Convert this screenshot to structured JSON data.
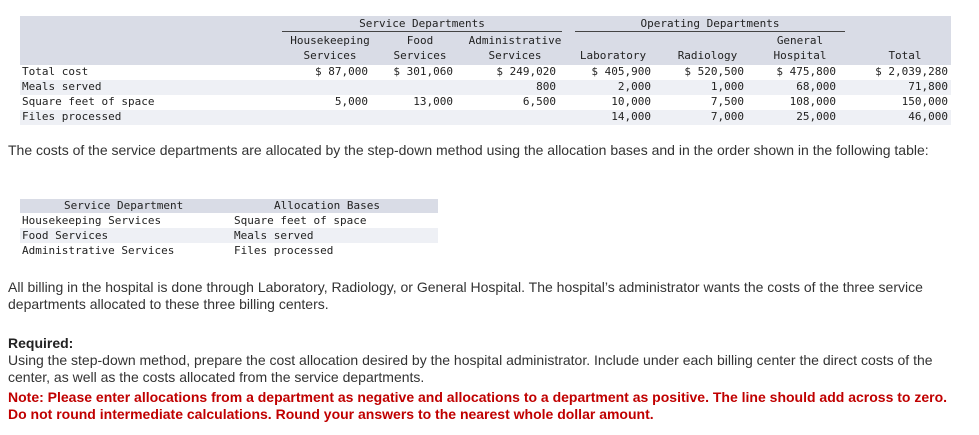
{
  "table1": {
    "group_service": "Service Departments",
    "group_operating": "Operating Departments",
    "columns": [
      {
        "l1": "",
        "l2": "Housekeeping",
        "l3": "Services"
      },
      {
        "l1": "",
        "l2": "Food",
        "l3": "Services"
      },
      {
        "l1": "",
        "l2": "Administrative",
        "l3": "Services"
      },
      {
        "l1": "",
        "l2": "",
        "l3": "Laboratory"
      },
      {
        "l1": "",
        "l2": "",
        "l3": "Radiology"
      },
      {
        "l1": "",
        "l2": "General",
        "l3": "Hospital"
      },
      {
        "l1": "",
        "l2": "",
        "l3": "Total"
      }
    ],
    "rows": [
      {
        "label": "Total cost",
        "cells": [
          "$ 87,000",
          "$ 301,060",
          "$ 249,020",
          "$ 405,900",
          "$ 520,500",
          "$ 475,800",
          "$ 2,039,280"
        ]
      },
      {
        "label": "Meals served",
        "cells": [
          "",
          "",
          "800",
          "2,000",
          "1,000",
          "68,000",
          "71,800"
        ]
      },
      {
        "label": "Square feet of space",
        "cells": [
          "5,000",
          "13,000",
          "6,500",
          "10,000",
          "7,500",
          "108,000",
          "150,000"
        ]
      },
      {
        "label": "Files processed",
        "cells": [
          "",
          "",
          "",
          "14,000",
          "7,000",
          "25,000",
          "46,000"
        ]
      }
    ]
  },
  "para1": "The costs of the service departments are allocated by the step-down method using the allocation bases and in the order shown in the following table:",
  "table2": {
    "header_dept": "Service Department",
    "header_basis": "Allocation Bases",
    "rows": [
      {
        "dept": "Housekeeping Services",
        "basis": "Square feet of space"
      },
      {
        "dept": "Food Services",
        "basis": "Meals served"
      },
      {
        "dept": "Administrative Services",
        "basis": "Files processed"
      }
    ]
  },
  "para2": "All billing in the hospital is done through Laboratory, Radiology, or General Hospital. The hospital’s administrator wants the costs of the three service departments allocated to these three billing centers.",
  "required_title": "Required:",
  "required_text": "Using the step-down method, prepare the cost allocation desired by the hospital administrator. Include under each billing center the direct costs of the center, as well as the costs allocated from the service departments.",
  "note": "Note: Please enter allocations from a department as negative and allocations to a department as positive. The line should add across to zero. Do not round intermediate calculations. Round your answers to the nearest whole dollar amount."
}
